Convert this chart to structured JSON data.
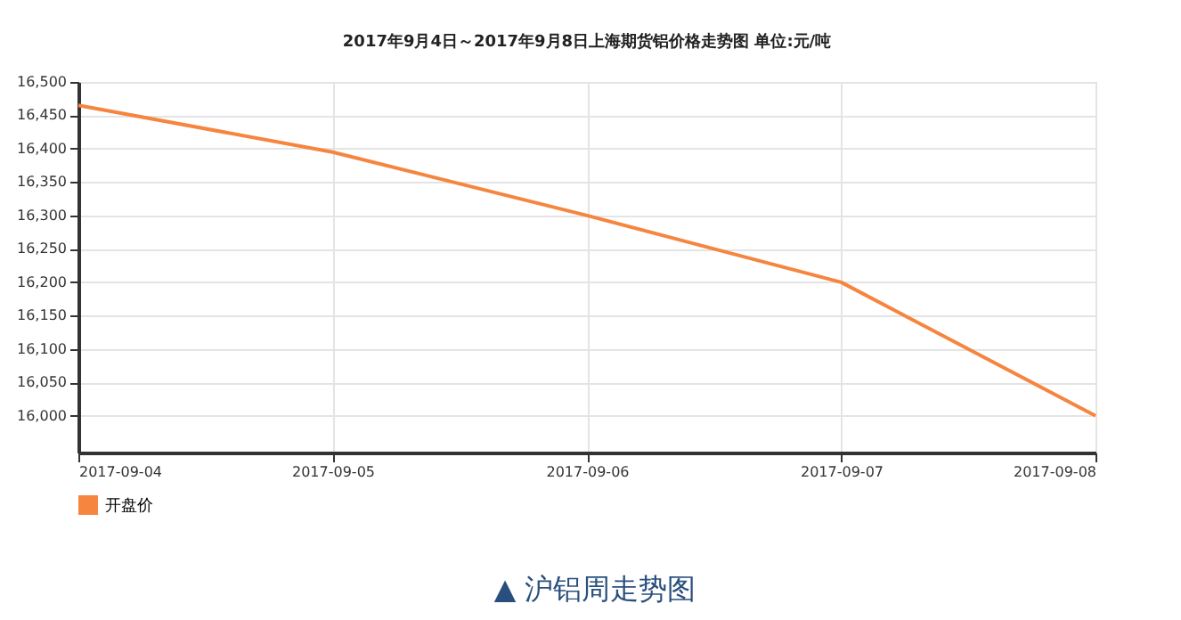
{
  "chart_data": {
    "type": "line",
    "title": "2017年9月4日～2017年9月8日上海期货铝价格走势图 单位:元/吨",
    "categories": [
      "2017-09-04",
      "2017-09-05",
      "2017-09-06",
      "2017-09-07",
      "2017-09-08"
    ],
    "series": [
      {
        "name": "开盘价",
        "color": "#f5853f",
        "values": [
          16465,
          16395,
          16300,
          16200,
          16000
        ]
      }
    ],
    "ylim": [
      15945,
      16500
    ],
    "yticks": [
      {
        "value": 16000,
        "label": "16,000"
      },
      {
        "value": 16050,
        "label": "16,050"
      },
      {
        "value": 16100,
        "label": "16,100"
      },
      {
        "value": 16150,
        "label": "16,150"
      },
      {
        "value": 16200,
        "label": "16,200"
      },
      {
        "value": 16250,
        "label": "16,250"
      },
      {
        "value": 16300,
        "label": "16,300"
      },
      {
        "value": 16350,
        "label": "16,350"
      },
      {
        "value": 16400,
        "label": "16,400"
      },
      {
        "value": 16450,
        "label": "16,450"
      },
      {
        "value": 16500,
        "label": "16,500"
      }
    ],
    "grid": true,
    "legend": "bottom left",
    "marker": "none",
    "annotations": [
      "▲ 沪铝周走势图"
    ]
  }
}
